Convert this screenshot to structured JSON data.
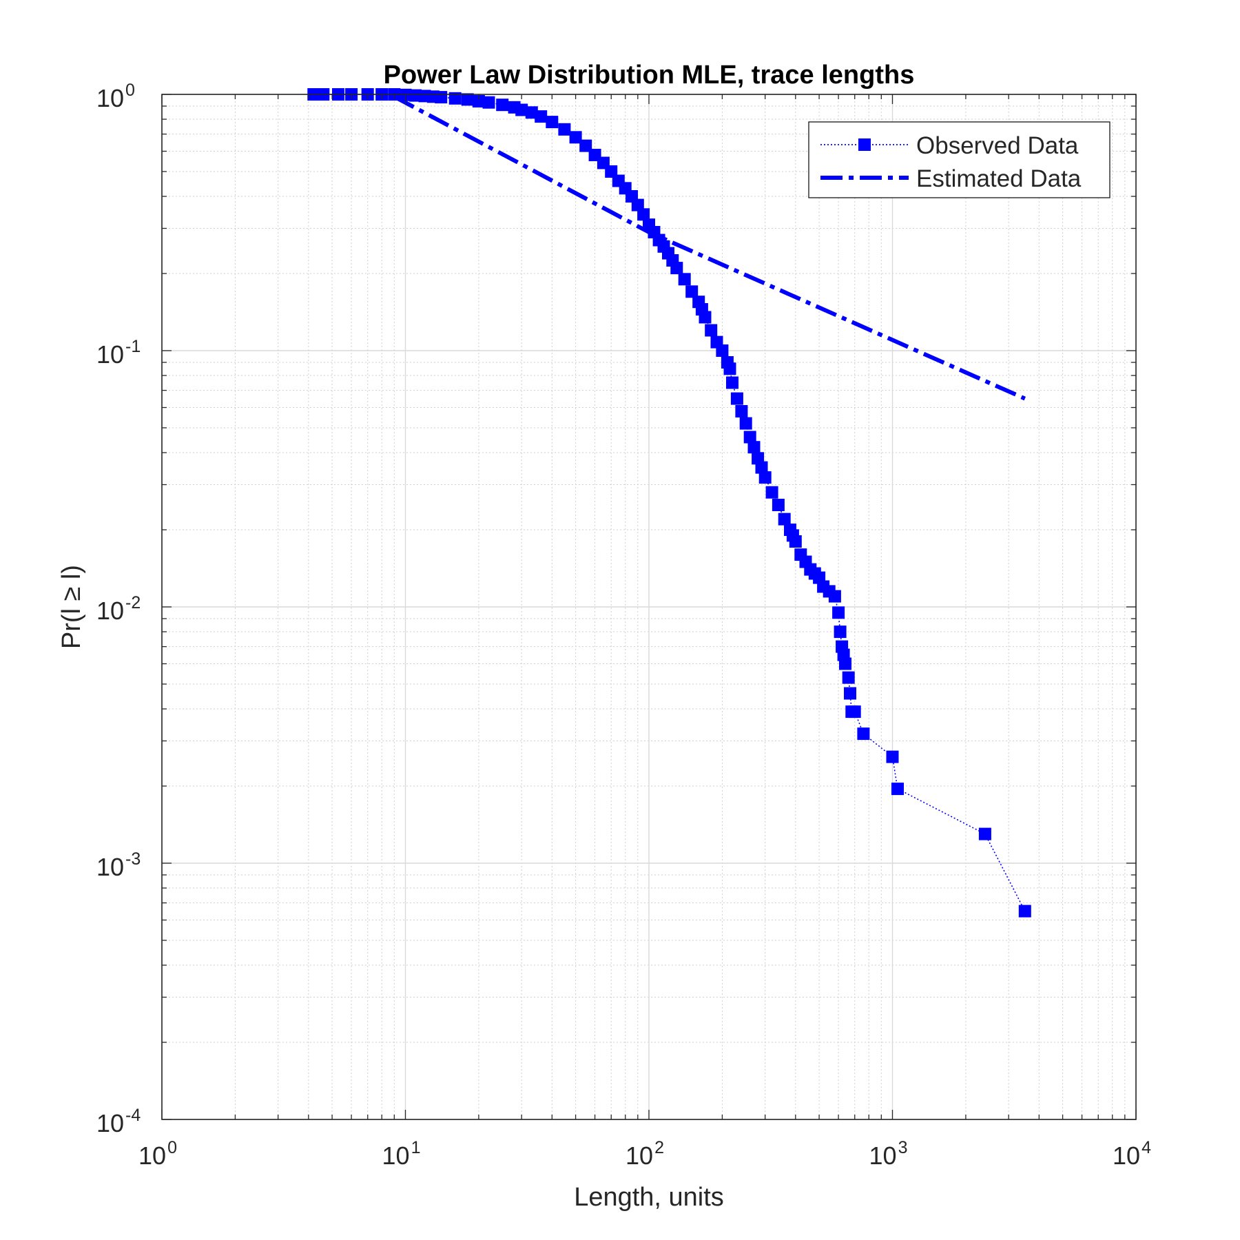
{
  "chart_data": {
    "type": "line",
    "title": "Power Law Distribution MLE, trace lengths",
    "xlabel": "Length, units",
    "ylabel": "Pr(l ≥ l)",
    "xscale": "log",
    "yscale": "log",
    "xlim": [
      1,
      10000
    ],
    "ylim": [
      0.0001,
      1
    ],
    "grid": true,
    "legend_position": "top-right",
    "x_ticks": [
      {
        "base": "10",
        "exp": "0",
        "value": 1
      },
      {
        "base": "10",
        "exp": "1",
        "value": 10
      },
      {
        "base": "10",
        "exp": "2",
        "value": 100
      },
      {
        "base": "10",
        "exp": "3",
        "value": 1000
      },
      {
        "base": "10",
        "exp": "4",
        "value": 10000
      }
    ],
    "y_ticks": [
      {
        "base": "10",
        "exp": "0",
        "value": 1
      },
      {
        "base": "10",
        "exp": "-1",
        "value": 0.1
      },
      {
        "base": "10",
        "exp": "-2",
        "value": 0.01
      },
      {
        "base": "10",
        "exp": "-3",
        "value": 0.001
      },
      {
        "base": "10",
        "exp": "-4",
        "value": 0.0001
      }
    ],
    "series": [
      {
        "name": "Observed Data",
        "color": "#0000ff",
        "style": "dotted line with square markers",
        "x": [
          4.2,
          4.6,
          5.3,
          6,
          7,
          8,
          9,
          10,
          11,
          12,
          13,
          14,
          16,
          18,
          20,
          22,
          25,
          28,
          30,
          33,
          36,
          40,
          45,
          50,
          55,
          60,
          65,
          70,
          75,
          80,
          85,
          90,
          95,
          100,
          105,
          110,
          115,
          120,
          125,
          130,
          140,
          150,
          160,
          165,
          170,
          180,
          190,
          200,
          210,
          215,
          220,
          230,
          240,
          250,
          260,
          270,
          280,
          290,
          300,
          320,
          340,
          360,
          380,
          390,
          400,
          420,
          440,
          460,
          480,
          500,
          520,
          550,
          580,
          600,
          610,
          620,
          630,
          640,
          660,
          670,
          680,
          700,
          760,
          1000,
          1050,
          2400,
          3500
        ],
        "y": [
          1.0,
          1.0,
          1.0,
          1.0,
          1.0,
          1.0,
          1.0,
          0.995,
          0.99,
          0.985,
          0.98,
          0.975,
          0.965,
          0.955,
          0.94,
          0.93,
          0.91,
          0.89,
          0.87,
          0.85,
          0.82,
          0.78,
          0.73,
          0.68,
          0.63,
          0.58,
          0.54,
          0.5,
          0.46,
          0.43,
          0.4,
          0.37,
          0.34,
          0.31,
          0.29,
          0.27,
          0.255,
          0.24,
          0.225,
          0.21,
          0.19,
          0.17,
          0.155,
          0.145,
          0.135,
          0.12,
          0.108,
          0.1,
          0.09,
          0.085,
          0.075,
          0.065,
          0.058,
          0.052,
          0.046,
          0.042,
          0.038,
          0.035,
          0.032,
          0.028,
          0.025,
          0.022,
          0.02,
          0.019,
          0.018,
          0.016,
          0.015,
          0.014,
          0.0135,
          0.013,
          0.012,
          0.0115,
          0.011,
          0.0095,
          0.008,
          0.007,
          0.0065,
          0.006,
          0.0053,
          0.0046,
          0.0039,
          0.0039,
          0.0032,
          0.0026,
          0.00195,
          0.0013,
          0.00065
        ]
      },
      {
        "name": "Estimated Data",
        "color": "#0000ff",
        "style": "thick dash-dot line",
        "x": [
          9,
          100,
          3500
        ],
        "y": [
          0.98,
          0.29,
          0.065
        ]
      }
    ]
  }
}
